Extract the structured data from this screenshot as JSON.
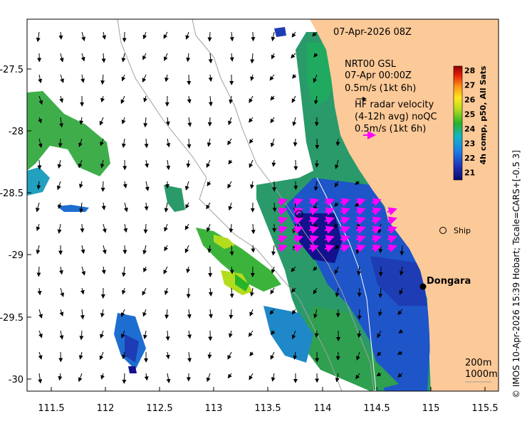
{
  "header": {
    "timestamp": "07-Apr-2026 08Z"
  },
  "legend": {
    "model_name": "NRT00 GSL",
    "model_time": "07-Apr 00:00Z",
    "model_scale": "0.5m/s (1kt 6h)",
    "radar_line1": "HF radar velocity",
    "radar_line2": "(4-12h avg) noQC",
    "radar_scale": "0.5m/s (1kt 6h)",
    "model_arrow_color": "#000000",
    "radar_arrow_color": "#ff00ff"
  },
  "colorbar": {
    "title": "4h comp, p50, All Sats",
    "ticks": [
      "28",
      "27",
      "26",
      "25",
      "24",
      "23",
      "22",
      "21"
    ]
  },
  "axes": {
    "x_ticks": [
      "111.5",
      "112",
      "112.5",
      "113",
      "113.5",
      "114",
      "114.5",
      "115",
      "115.5"
    ],
    "y_ticks": [
      "-27.5",
      "-28",
      "-28.5",
      "-29",
      "-29.5",
      "-30"
    ]
  },
  "places": {
    "dongara": "Dongara",
    "ship": "Ship"
  },
  "bathymetry": {
    "label_200": "200m",
    "label_1000": "1000m"
  },
  "footer": {
    "credit": "© IMOS 10-Apr-2026 15:39 Hobart; Tscale=CARS+[-0.5 3]"
  },
  "colors": {
    "land": "#fcc998",
    "warm": "#28b428",
    "cool": "#1e32b4",
    "contour": "#a0a0a0"
  },
  "chart_data": {
    "type": "map",
    "xlim": [
      111.3,
      115.6
    ],
    "ylim": [
      -30.1,
      -27.1
    ],
    "places": [
      {
        "name": "Dongara",
        "lon": 114.93,
        "lat": -29.25
      },
      {
        "name": "Ship",
        "lon": 115.12,
        "lat": -28.85
      }
    ],
    "temperature_range": [
      20.5,
      28
    ]
  }
}
